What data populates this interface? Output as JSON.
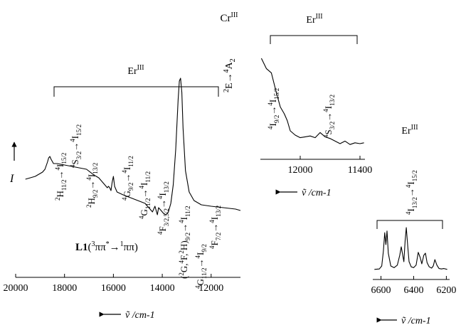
{
  "chart_data": [
    {
      "type": "line",
      "panel": "main",
      "xlabel": "ṽ /cm-1",
      "ylabel": "I",
      "xlim": [
        20000,
        10800
      ],
      "x_ticks": [
        20000,
        18000,
        16000,
        14000,
        12000
      ],
      "x_tick_labels": [
        "20000",
        "18000",
        "16000",
        "14000",
        "12000"
      ],
      "series": [
        {
          "x": [
            19600,
            19200,
            18900,
            18800,
            18700,
            18650,
            18600,
            18550,
            18450,
            18300,
            18000,
            17700,
            17400,
            17100,
            16800,
            16600,
            16400,
            16250,
            16200,
            16150,
            16100,
            16050,
            16000,
            15950,
            15850,
            15600,
            15300,
            15000,
            14700,
            14500,
            14400,
            14300,
            14250,
            14200,
            14150,
            14050,
            13950,
            13850,
            13750,
            13650,
            13550,
            13450,
            13350,
            13300,
            13250,
            13200,
            13150,
            13050,
            12900,
            12700,
            12400,
            12000,
            11500,
            11000,
            10800
          ],
          "y": [
            0.19,
            0.21,
            0.24,
            0.26,
            0.31,
            0.34,
            0.35,
            0.33,
            0.3,
            0.3,
            0.29,
            0.28,
            0.27,
            0.26,
            0.22,
            0.2,
            0.16,
            0.13,
            0.14,
            0.13,
            0.11,
            0.17,
            0.21,
            0.14,
            0.1,
            0.08,
            0.06,
            0.04,
            0.02,
            -0.02,
            -0.04,
            0.0,
            -0.03,
            -0.06,
            -0.01,
            -0.03,
            -0.05,
            -0.06,
            -0.04,
            0.02,
            0.15,
            0.4,
            0.75,
            0.88,
            0.9,
            0.8,
            0.55,
            0.25,
            0.1,
            0.04,
            0.01,
            0.0,
            -0.01,
            -0.02,
            -0.03
          ]
        }
      ],
      "annotations": {
        "er_label": "ErIII",
        "cr_label": "CrIII",
        "cr_transition": "2E→4A2",
        "er_transitions": [
          "2H11/2→4I15/2",
          "4S3/2→4I15/2",
          "2H9/2→4I13/2",
          "4G9/2→4I11/2",
          "4G11/2→4I11/2",
          "4F3/2,5/2→4I13/2",
          "(2G,4F,2H)9/2→4I11/2",
          "4G11/2→4I9/2",
          "4F7/2→4I13/2"
        ],
        "ligand_label": "L1(3ππ*→1ππ)"
      }
    },
    {
      "type": "line",
      "panel": "inset-top",
      "xlabel": "ṽ /cm-1",
      "xlim": [
        12400,
        11350
      ],
      "x_ticks": [
        12000,
        11400
      ],
      "x_tick_labels": [
        "12000",
        "11400"
      ],
      "series": [
        {
          "x": [
            12390,
            12340,
            12290,
            12240,
            12200,
            12160,
            12130,
            12100,
            12050,
            12000,
            11950,
            11900,
            11850,
            11800,
            11750,
            11700,
            11650,
            11600,
            11550,
            11500,
            11450,
            11400,
            11360
          ],
          "y": [
            0.95,
            0.83,
            0.78,
            0.55,
            0.38,
            0.3,
            0.22,
            0.1,
            0.05,
            0.02,
            0.03,
            0.04,
            0.02,
            0.08,
            0.03,
            0.01,
            -0.02,
            -0.05,
            -0.02,
            -0.06,
            -0.04,
            -0.05,
            -0.04
          ]
        }
      ],
      "annotations": {
        "er_label": "ErIII",
        "transitions": [
          "4I9/2→4I15/2",
          "4S3/2→4I13/2"
        ]
      }
    },
    {
      "type": "line",
      "panel": "inset-bottom",
      "xlabel": "ṽ /cm-1",
      "xlim": [
        6650,
        6180
      ],
      "x_ticks": [
        6600,
        6400,
        6200
      ],
      "x_tick_labels": [
        "6600",
        "6400",
        "6200"
      ],
      "series": [
        {
          "x": [
            6640,
            6610,
            6595,
            6585,
            6577,
            6570,
            6563,
            6555,
            6540,
            6520,
            6500,
            6485,
            6476,
            6468,
            6460,
            6452,
            6445,
            6436,
            6428,
            6415,
            6400,
            6385,
            6372,
            6360,
            6350,
            6338,
            6328,
            6318,
            6305,
            6290,
            6280,
            6270,
            6258,
            6245,
            6230,
            6215,
            6195
          ],
          "y": [
            0.02,
            0.03,
            0.1,
            0.45,
            0.88,
            0.6,
            0.92,
            0.4,
            0.1,
            0.06,
            0.12,
            0.35,
            0.55,
            0.38,
            0.2,
            0.7,
            1.0,
            0.55,
            0.2,
            0.08,
            0.06,
            0.12,
            0.42,
            0.3,
            0.15,
            0.35,
            0.4,
            0.18,
            0.08,
            0.05,
            0.1,
            0.25,
            0.12,
            0.04,
            0.03,
            0.04,
            0.02
          ]
        }
      ],
      "annotations": {
        "er_label": "ErIII",
        "transition": "4I13/2→4I15/2"
      }
    }
  ]
}
